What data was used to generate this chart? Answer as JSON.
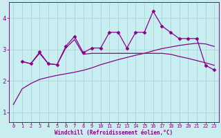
{
  "xlabel": "Windchill (Refroidissement éolien,°C)",
  "bg_color": "#c8eef0",
  "line_color": "#8b008b",
  "grid_color": "#b0d8dc",
  "xlim": [
    -0.5,
    23.5
  ],
  "ylim": [
    0.7,
    4.5
  ],
  "xticks": [
    0,
    1,
    2,
    3,
    4,
    5,
    6,
    7,
    8,
    9,
    10,
    11,
    12,
    13,
    14,
    15,
    16,
    17,
    18,
    19,
    20,
    21,
    22,
    23
  ],
  "yticks": [
    1,
    2,
    3,
    4
  ],
  "line1_x": [
    0,
    1,
    2,
    3,
    4,
    5,
    6,
    7,
    8,
    9,
    10,
    11,
    12,
    13,
    14,
    15,
    16,
    17,
    18,
    19,
    20,
    21,
    22,
    23
  ],
  "line1_y": [
    1.25,
    1.75,
    1.92,
    2.05,
    2.12,
    2.18,
    2.23,
    2.28,
    2.34,
    2.42,
    2.52,
    2.6,
    2.68,
    2.75,
    2.82,
    2.88,
    2.96,
    3.03,
    3.08,
    3.13,
    3.17,
    3.2,
    3.18,
    3.1
  ],
  "line2_x": [
    1,
    2,
    3,
    4,
    5,
    6,
    7,
    8,
    9,
    10,
    11,
    12,
    13,
    14,
    15,
    16,
    17,
    18,
    19,
    20,
    21,
    22,
    23
  ],
  "line2_y": [
    2.62,
    2.55,
    2.88,
    2.55,
    2.52,
    3.05,
    3.32,
    2.85,
    2.88,
    2.88,
    2.88,
    2.88,
    2.88,
    2.88,
    2.88,
    2.88,
    2.88,
    2.85,
    2.78,
    2.72,
    2.65,
    2.58,
    2.5
  ],
  "line3_x": [
    1,
    2,
    3,
    4,
    5,
    6,
    7,
    8,
    9,
    10,
    11,
    12,
    13,
    14,
    15,
    16,
    17,
    18,
    19,
    20,
    21,
    22,
    23
  ],
  "line3_y": [
    2.62,
    2.55,
    2.92,
    2.55,
    2.52,
    3.1,
    3.42,
    2.9,
    3.05,
    3.05,
    3.55,
    3.55,
    3.05,
    3.55,
    3.55,
    4.22,
    3.75,
    3.55,
    3.35,
    3.35,
    3.35,
    2.5,
    2.35
  ]
}
